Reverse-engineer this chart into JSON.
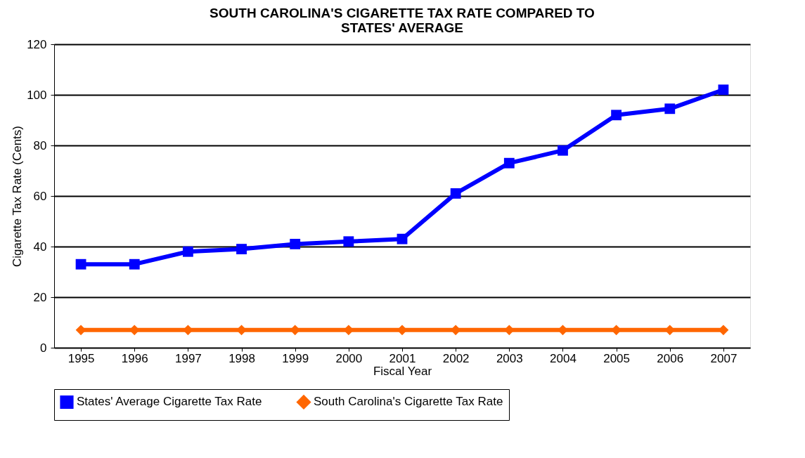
{
  "chart_data": {
    "type": "line",
    "title": "SOUTH CAROLINA'S CIGARETTE TAX RATE COMPARED TO STATES' AVERAGE",
    "xlabel": "Fiscal Year",
    "ylabel": "Cigarette Tax Rate (Cents)",
    "categories": [
      "1995",
      "1996",
      "1997",
      "1998",
      "1999",
      "2000",
      "2001",
      "2002",
      "2003",
      "2004",
      "2005",
      "2006",
      "2007"
    ],
    "series": [
      {
        "name": "States' Average Cigarette Tax Rate",
        "color": "#0000ff",
        "marker": "square",
        "values": [
          33,
          33,
          38,
          39,
          41,
          42,
          43,
          61,
          73,
          78,
          92,
          94.5,
          102
        ]
      },
      {
        "name": "South Carolina's Cigarette Tax Rate",
        "color": "#ff6600",
        "marker": "diamond",
        "values": [
          7,
          7,
          7,
          7,
          7,
          7,
          7,
          7,
          7,
          7,
          7,
          7,
          7
        ]
      }
    ],
    "ylim": [
      0,
      120
    ],
    "yticks": [
      0,
      20,
      40,
      60,
      80,
      100,
      120
    ],
    "grid": "y",
    "legend": "bottom",
    "line_style": "solid"
  }
}
